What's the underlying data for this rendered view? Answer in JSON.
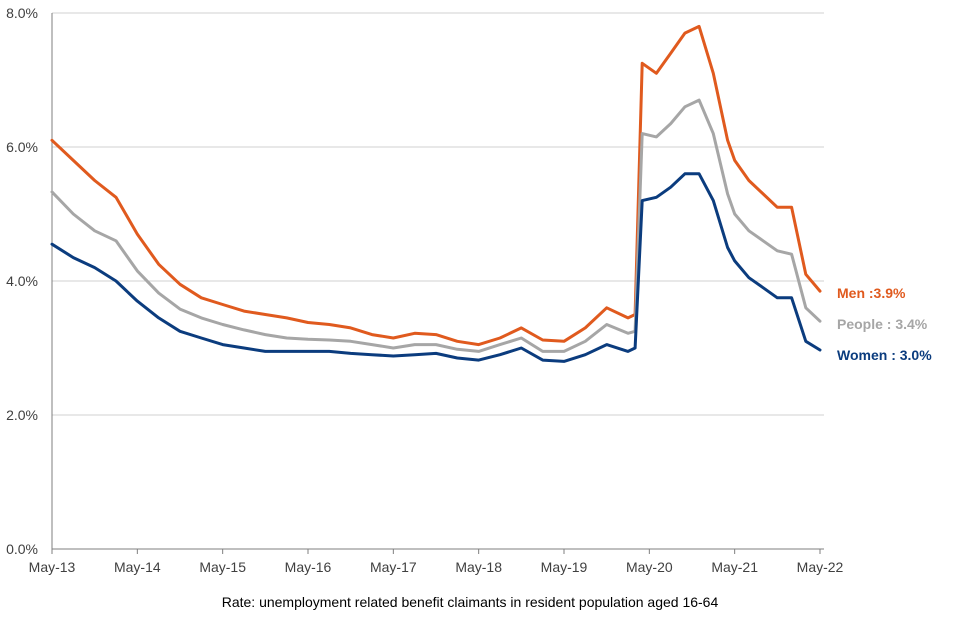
{
  "chart_data": {
    "type": "line",
    "title": "",
    "xlabel": "Rate: unemployment  related benefit claimants in resident population aged 16-64",
    "ylabel": "",
    "ylim": [
      0,
      8
    ],
    "yticks": [
      "0.0%",
      "2.0%",
      "4.0%",
      "6.0%",
      "8.0%"
    ],
    "ytick_values": [
      0,
      2,
      4,
      6,
      8
    ],
    "xticks": [
      "May-13",
      "May-14",
      "May-15",
      "May-16",
      "May-17",
      "May-18",
      "May-19",
      "May-20",
      "May-21",
      "May-22"
    ],
    "grid": true,
    "x_months": [
      "May-13",
      "Aug-13",
      "Nov-13",
      "Feb-14",
      "May-14",
      "Aug-14",
      "Nov-14",
      "Feb-15",
      "May-15",
      "Aug-15",
      "Nov-15",
      "Feb-16",
      "May-16",
      "Aug-16",
      "Nov-16",
      "Feb-17",
      "May-17",
      "Aug-17",
      "Nov-17",
      "Feb-18",
      "May-18",
      "Aug-18",
      "Nov-18",
      "Feb-19",
      "May-19",
      "Aug-19",
      "Nov-19",
      "Feb-20",
      "Mar-20",
      "Apr-20",
      "Jun-20",
      "Aug-20",
      "Oct-20",
      "Dec-20",
      "Feb-21",
      "Apr-21",
      "May-21",
      "Jul-21",
      "Sep-21",
      "Nov-21",
      "Jan-22",
      "Mar-22",
      "May-22"
    ],
    "series": [
      {
        "name": "Men :3.9%",
        "color": "#e05a1e",
        "values": [
          6.1,
          5.8,
          5.5,
          5.25,
          4.7,
          4.25,
          3.95,
          3.75,
          3.65,
          3.55,
          3.5,
          3.45,
          3.38,
          3.35,
          3.3,
          3.2,
          3.15,
          3.22,
          3.2,
          3.1,
          3.05,
          3.15,
          3.3,
          3.12,
          3.1,
          3.3,
          3.6,
          3.45,
          3.5,
          7.25,
          7.1,
          7.4,
          7.7,
          7.8,
          7.1,
          6.1,
          5.8,
          5.5,
          5.3,
          5.1,
          5.1,
          4.1,
          3.85
        ]
      },
      {
        "name": "People : 3.4%",
        "color": "#a6a6a6",
        "values": [
          5.33,
          5.0,
          4.75,
          4.6,
          4.15,
          3.82,
          3.58,
          3.45,
          3.35,
          3.27,
          3.2,
          3.15,
          3.13,
          3.12,
          3.1,
          3.05,
          3.0,
          3.05,
          3.05,
          2.98,
          2.95,
          3.05,
          3.15,
          2.95,
          2.95,
          3.1,
          3.35,
          3.22,
          3.25,
          6.2,
          6.15,
          6.35,
          6.6,
          6.7,
          6.2,
          5.3,
          5.0,
          4.75,
          4.6,
          4.45,
          4.4,
          3.6,
          3.4
        ]
      },
      {
        "name": "Women : 3.0%",
        "color": "#0b3c7e",
        "values": [
          4.55,
          4.35,
          4.2,
          4.0,
          3.7,
          3.45,
          3.25,
          3.15,
          3.05,
          3.0,
          2.95,
          2.95,
          2.95,
          2.95,
          2.92,
          2.9,
          2.88,
          2.9,
          2.92,
          2.85,
          2.82,
          2.9,
          3.0,
          2.82,
          2.8,
          2.9,
          3.05,
          2.95,
          3.0,
          5.2,
          5.25,
          5.4,
          5.6,
          5.6,
          5.2,
          4.5,
          4.3,
          4.05,
          3.9,
          3.75,
          3.75,
          3.1,
          2.97
        ]
      }
    ]
  }
}
